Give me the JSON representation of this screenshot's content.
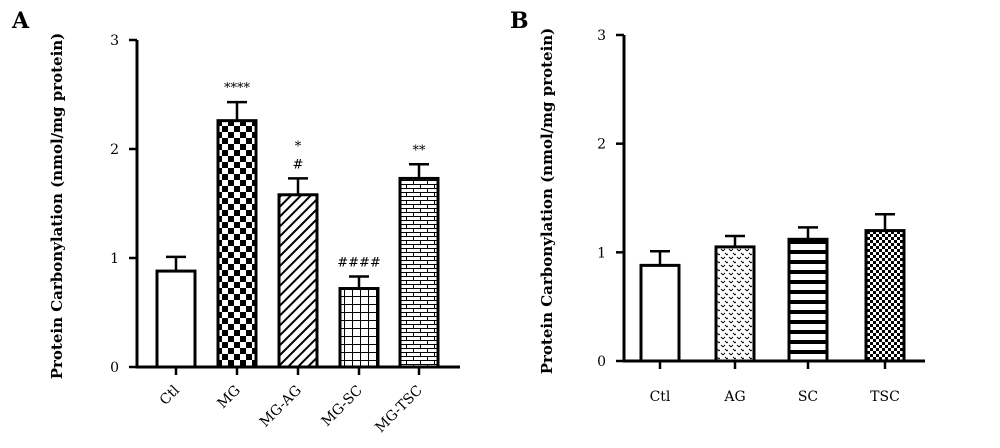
{
  "chart_data": [
    {
      "type": "bar",
      "panel": "A",
      "ylabel": "Protein Carbonylation (nmol/mg protein)",
      "ylim": [
        0,
        3
      ],
      "yticks": [
        "0",
        "1",
        "2",
        "3"
      ],
      "categories": [
        "Ctl",
        "MG",
        "MG-AG",
        "MG-SC",
        "MG-TSC"
      ],
      "values": [
        0.88,
        2.26,
        1.58,
        0.72,
        1.73
      ],
      "errors": [
        0.13,
        0.17,
        0.15,
        0.11,
        0.13
      ],
      "patterns": [
        "none",
        "checker",
        "diagonal",
        "grid",
        "brick"
      ],
      "annotations": [
        "",
        "****",
        "*|#",
        "####",
        "**"
      ],
      "grid": false
    },
    {
      "type": "bar",
      "panel": "B",
      "ylabel": "Protein Carbonylation (nmol/mg protein)",
      "ylim": [
        0,
        3
      ],
      "yticks": [
        "0",
        "1",
        "2",
        "3"
      ],
      "categories": [
        "Ctl",
        "AG",
        "SC",
        "TSC"
      ],
      "values": [
        0.88,
        1.05,
        1.12,
        1.2
      ],
      "errors": [
        0.13,
        0.1,
        0.11,
        0.15
      ],
      "patterns": [
        "none",
        "dots",
        "hstripes",
        "fine-checker"
      ],
      "annotations": [
        "",
        "",
        "",
        ""
      ],
      "grid": false
    }
  ]
}
